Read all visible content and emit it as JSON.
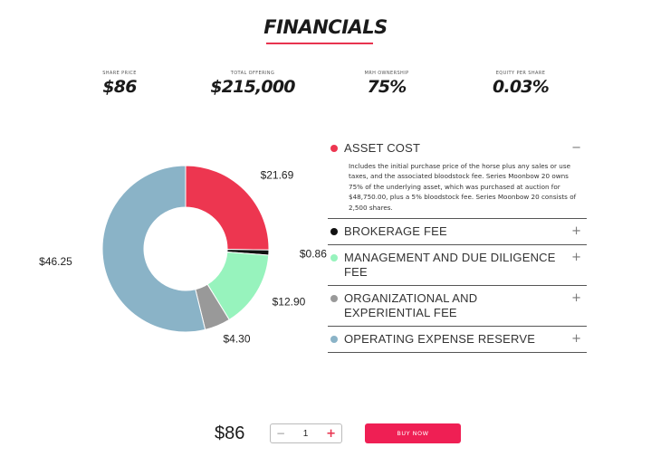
{
  "header": {
    "title": "FINANCIALS"
  },
  "stats": [
    {
      "label": "SHARE PRICE",
      "value": "$86"
    },
    {
      "label": "TOTAL OFFERING",
      "value": "$215,000"
    },
    {
      "label": "MRH OWNERSHIP",
      "value": "75%"
    },
    {
      "label": "EQUITY PER SHARE",
      "value": "0.03%"
    }
  ],
  "chart_data": {
    "type": "pie",
    "donut": true,
    "categories": [
      "Asset Cost",
      "Brokerage Fee",
      "Management and Due Diligence Fee",
      "Organizational and Experiential Fee",
      "Operating Expense Reserve"
    ],
    "values": [
      21.69,
      0.86,
      12.9,
      4.3,
      46.25
    ],
    "labels": [
      "$21.69",
      "$0.86",
      "$12.90",
      "$4.30",
      "$46.25"
    ],
    "colors": [
      "#ed3650",
      "#111111",
      "#97f3bd",
      "#999999",
      "#8ab3c7"
    ]
  },
  "accordion": {
    "items": [
      {
        "title": "ASSET COST",
        "color": "#ed3650",
        "toggle": "−",
        "expanded": true,
        "body": "Includes the initial purchase price of the horse plus any sales or use taxes, and the associated bloodstock fee. Series Moonbow 20 owns 75% of the underlying asset, which was purchased at auction for $48,750.00, plus a 5% bloodstock fee. Series Moonbow 20 consists of 2,500 shares."
      },
      {
        "title": "BROKERAGE FEE",
        "color": "#111111",
        "toggle": "+",
        "expanded": false,
        "body": ""
      },
      {
        "title": "MANAGEMENT AND DUE DILIGENCE FEE",
        "color": "#97f3bd",
        "toggle": "+",
        "expanded": false,
        "body": ""
      },
      {
        "title": "ORGANIZATIONAL AND EXPERIENTIAL FEE",
        "color": "#999999",
        "toggle": "+",
        "expanded": false,
        "body": ""
      },
      {
        "title": "OPERATING EXPENSE RESERVE",
        "color": "#8ab3c7",
        "toggle": "+",
        "expanded": false,
        "body": ""
      }
    ]
  },
  "purchase": {
    "price": "$86",
    "quantity": "1",
    "minus": "−",
    "plus": "+",
    "buy_label": "BUY NOW"
  }
}
